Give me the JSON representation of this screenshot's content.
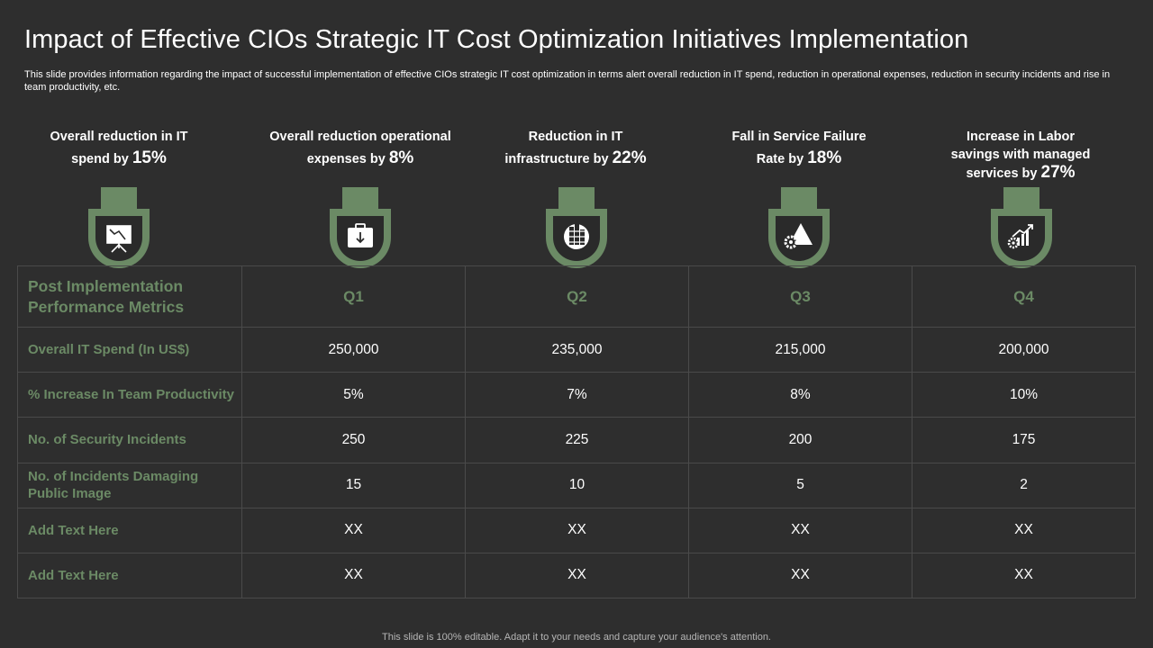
{
  "title": "Impact of Effective CIOs Strategic IT Cost Optimization Initiatives Implementation",
  "subtitle": "This slide provides information regarding the impact of successful implementation of effective  CIOs strategic IT  cost optimization in terms alert overall reduction in IT  spend, reduction in operational expenses, reduction in security incidents and rise in team productivity,  etc.",
  "colors": {
    "accent": "#6b8a65",
    "background": "#2e2e2e",
    "badge_inner": "#2a2a2a"
  },
  "kpis": [
    {
      "text": "Overall reduction in IT spend by",
      "value": "15%",
      "icon": "presentation-board-icon"
    },
    {
      "text": "Overall reduction operational expenses by",
      "value": "8%",
      "icon": "briefcase-down-arrow-icon"
    },
    {
      "text": "Reduction in IT infrastructure by",
      "value": "22%",
      "icon": "building-network-icon"
    },
    {
      "text": "Fall in Service Failure Rate by",
      "value": "18%",
      "icon": "gear-warning-triangle-icon"
    },
    {
      "text": "Increase in Labor savings with managed services by",
      "value": "27%",
      "icon": "gear-growth-chart-icon"
    }
  ],
  "table": {
    "header_label": "Post Implementation Performance Metrics",
    "columns": [
      "Q1",
      "Q2",
      "Q3",
      "Q4"
    ],
    "rows": [
      {
        "label": "Overall IT Spend (In US$)",
        "values": [
          "250,000",
          "235,000",
          "215,000",
          "200,000"
        ]
      },
      {
        "label": "% Increase In Team Productivity",
        "values": [
          "5%",
          "7%",
          "8%",
          "10%"
        ]
      },
      {
        "label": "No. of Security Incidents",
        "values": [
          "250",
          "225",
          "200",
          "175"
        ]
      },
      {
        "label": "No. of Incidents Damaging Public Image",
        "values": [
          "15",
          "10",
          "5",
          "2"
        ]
      },
      {
        "label": "Add Text Here",
        "values": [
          "XX",
          "XX",
          "XX",
          "XX"
        ]
      },
      {
        "label": "Add Text Here",
        "values": [
          "XX",
          "XX",
          "XX",
          "XX"
        ]
      }
    ]
  },
  "footer": "This slide is 100% editable. Adapt it to your needs and capture your audience's attention."
}
